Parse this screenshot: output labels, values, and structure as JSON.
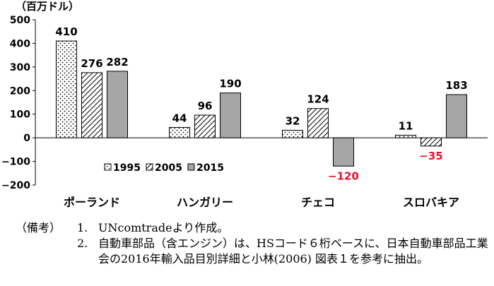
{
  "chart_data": {
    "type": "bar",
    "ylabel": "（百万ドル）",
    "ylim": [
      -200,
      500
    ],
    "yticks": [
      500,
      400,
      300,
      200,
      100,
      0,
      -100,
      -200
    ],
    "grid": false,
    "legend_position": "bottom-left-inside",
    "categories": [
      "ポーランド",
      "ハンガリー",
      "チェコ",
      "スロバキア"
    ],
    "series": [
      {
        "name": "1995",
        "values": [
          410,
          44,
          32,
          11
        ],
        "fill": "dots",
        "label_color": "#000000"
      },
      {
        "name": "2005",
        "values": [
          276,
          96,
          124,
          -35
        ],
        "fill": "hatch",
        "label_color": "#000000"
      },
      {
        "name": "2015",
        "values": [
          282,
          190,
          -120,
          183
        ],
        "fill": "gray",
        "label_color": "#000000"
      }
    ],
    "data_labels": [
      [
        "410",
        "276",
        "282"
      ],
      [
        "44",
        "96",
        "190"
      ],
      [
        "32",
        "124",
        "−120"
      ],
      [
        "11",
        "−35",
        "183"
      ]
    ],
    "negative_label_color": "#e8112d",
    "colors": {
      "gray": "#a6a6a6",
      "stroke": "#000000"
    }
  },
  "notes": {
    "prefix": "（備考）",
    "items": [
      {
        "num": "1.",
        "text": "UNcomtradeより作成。"
      },
      {
        "num": "2.",
        "text": "自動車部品（含エンジン）は、HSコード６桁ベースに、日本自動車部品工業会の2016年輸入品目別詳細と小林(2006) 図表１を参考に抽出。"
      }
    ]
  }
}
